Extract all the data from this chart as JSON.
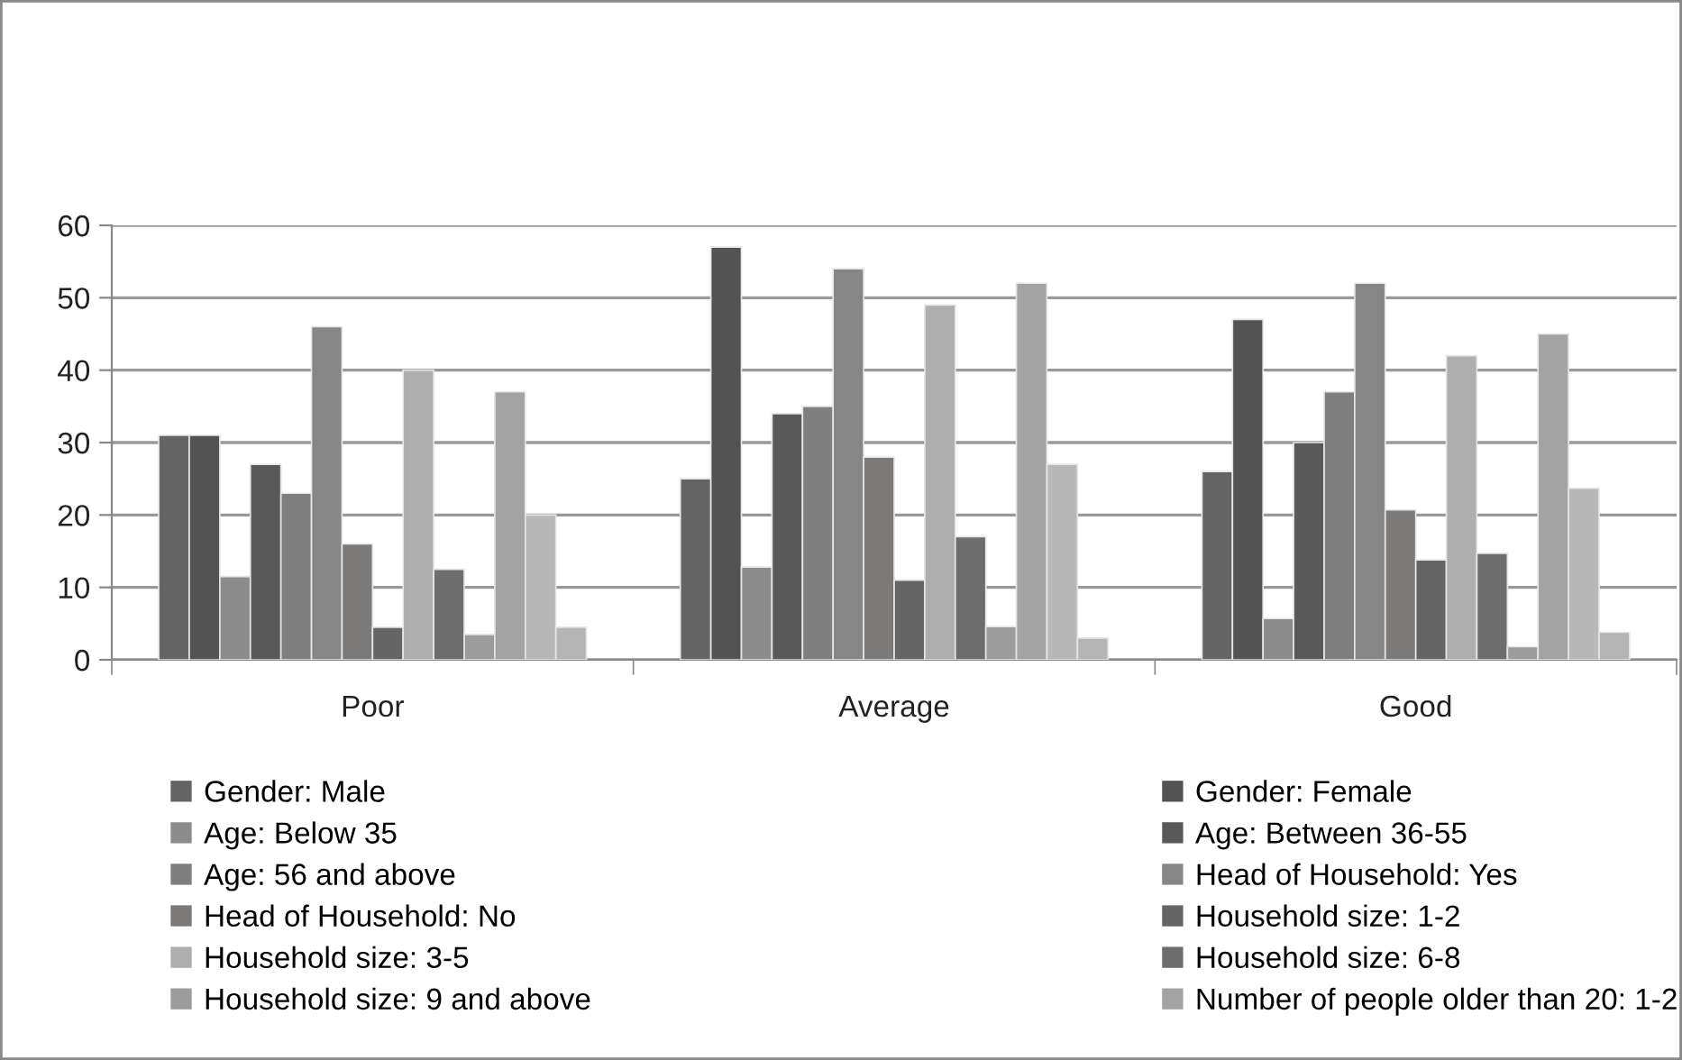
{
  "chart_data": {
    "type": "bar",
    "categories": [
      "Poor",
      "Average",
      "Good"
    ],
    "ylim": [
      0,
      60
    ],
    "yticks": [
      0,
      10,
      20,
      30,
      40,
      50,
      60
    ],
    "grid": "y",
    "legend": "bottom",
    "series": [
      {
        "name": "Gender: Male",
        "color": "#636463",
        "values": [
          31,
          25,
          26
        ]
      },
      {
        "name": "Gender: Female",
        "color": "#535353",
        "values": [
          31,
          57,
          47
        ]
      },
      {
        "name": "Age: Below 35",
        "color": "#8c8c8c",
        "values": [
          11.5,
          12.8,
          5.7
        ]
      },
      {
        "name": "Age: Between 36-55",
        "color": "#595959",
        "values": [
          27,
          34,
          30
        ]
      },
      {
        "name": "Age: 56 and above",
        "color": "#7e7e7e",
        "values": [
          23,
          35,
          37
        ]
      },
      {
        "name": "Head of Household: Yes",
        "color": "#868686",
        "values": [
          46,
          54,
          52
        ]
      },
      {
        "name": "Head of Household: No",
        "color": "#7b7a79",
        "values": [
          16,
          28,
          20.7
        ]
      },
      {
        "name": "Household size: 1-2",
        "color": "#656565",
        "values": [
          4.5,
          11,
          13.8
        ]
      },
      {
        "name": "Household size: 3-5",
        "color": "#aeaeae",
        "values": [
          40,
          49,
          42
        ]
      },
      {
        "name": "Household size: 6-8",
        "color": "#6d6d6d",
        "values": [
          12.5,
          17,
          14.7
        ]
      },
      {
        "name": "Household size: 9 and above",
        "color": "#9c9c9c",
        "values": [
          3.5,
          4.6,
          1.8
        ]
      },
      {
        "name": "Number of people older than 20: 1-2",
        "color": "#a3a3a3",
        "values": [
          37,
          52,
          45
        ]
      },
      {
        "color": "#b8b8b8",
        "values": [
          20,
          27,
          23.7
        ]
      },
      {
        "color": "#b5b5b5",
        "values": [
          4.5,
          3,
          3.8
        ]
      }
    ]
  }
}
